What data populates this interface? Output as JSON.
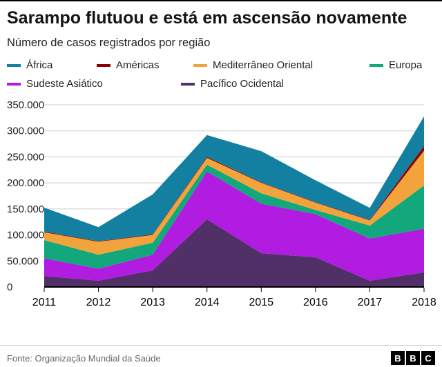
{
  "header": {
    "title": "Sarampo flutuou e está em ascensão novamente",
    "subtitle": "Número de casos registrados por região"
  },
  "legend": {
    "items": [
      {
        "label": "África",
        "color": "#1380a1"
      },
      {
        "label": "Américas",
        "color": "#8b0000"
      },
      {
        "label": "Mediterrâneo Oriental",
        "color": "#f2a33c"
      },
      {
        "label": "Europa",
        "color": "#12a87b"
      },
      {
        "label": "Sudeste Asiático",
        "color": "#b01ce0"
      },
      {
        "label": "Pacífico Ocidental",
        "color": "#503067"
      }
    ]
  },
  "chart_data": {
    "type": "area",
    "stacked": true,
    "title": "Sarampo flutuou e está em ascensão novamente",
    "subtitle": "Número de casos registrados por região",
    "categories": [
      "2011",
      "2012",
      "2013",
      "2014",
      "2015",
      "2016",
      "2017",
      "2018"
    ],
    "ylim": [
      0,
      350000
    ],
    "ytick_step": 50000,
    "ytick_labels": [
      "0",
      "50.000",
      "100.000",
      "150.000",
      "200.000",
      "250.000",
      "300.000",
      "350.000"
    ],
    "grid": true,
    "legend_position": "top",
    "series_bottom_to_top": [
      {
        "name": "Pacífico Ocidental",
        "color": "#503067",
        "values": [
          21000,
          12000,
          32000,
          130000,
          65000,
          57000,
          12000,
          28000
        ]
      },
      {
        "name": "Sudeste Asiático",
        "color": "#b01ce0",
        "values": [
          34000,
          23000,
          30000,
          92000,
          95000,
          83000,
          81000,
          84000
        ]
      },
      {
        "name": "Europa",
        "color": "#12a87b",
        "values": [
          35000,
          27000,
          23000,
          13000,
          20000,
          8000,
          25000,
          83000
        ]
      },
      {
        "name": "Mediterrâneo Oriental",
        "color": "#f2a33c",
        "values": [
          15000,
          25000,
          15000,
          13000,
          20000,
          14000,
          10000,
          67000
        ]
      },
      {
        "name": "Américas",
        "color": "#8b0000",
        "values": [
          1500,
          1000,
          1000,
          2000,
          1000,
          1000,
          1000,
          9000
        ]
      },
      {
        "name": "África",
        "color": "#1380a1",
        "values": [
          46000,
          27000,
          77000,
          42000,
          60000,
          42000,
          23000,
          57000
        ]
      }
    ]
  },
  "footer": {
    "source": "Fonte: Organização Mundial da Saúde",
    "logo_letters": [
      "B",
      "B",
      "C"
    ]
  }
}
